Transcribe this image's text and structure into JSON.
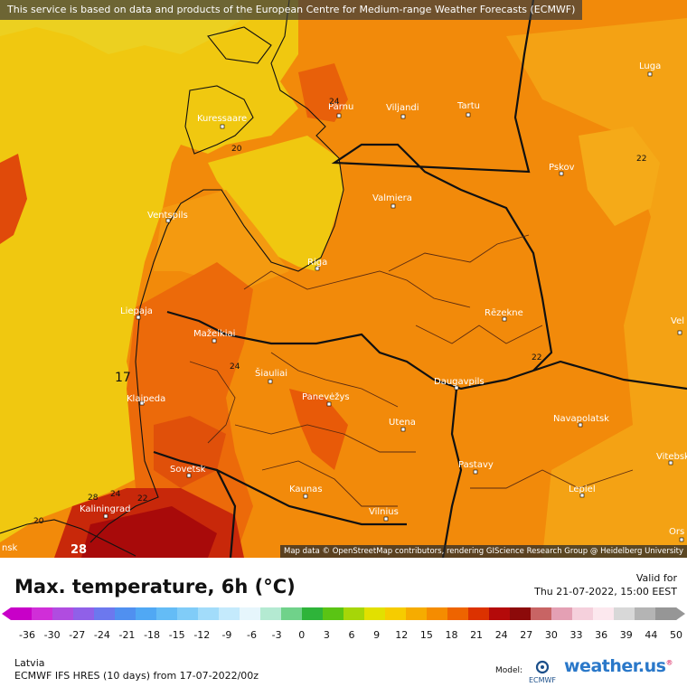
{
  "notice": "This service is based on data and products of the European Centre for Medium-range Weather Forecasts (ECMWF)",
  "attribution": "Map data © OpenStreetMap contributors, rendering GIScience Research Group @ Heidelberg University",
  "title": "Max. temperature, 6h (°C)",
  "valid_label": "Valid for",
  "valid_time": "Thu 21-07-2022, 15:00 EEST",
  "region": "Latvia",
  "model_run": "ECMWF IFS HRES (10 days) from 17-07-2022/00z",
  "model_label": "Model:",
  "brand": "weather.us",
  "brand_tld_mark": "®",
  "ecmwf_logo_text": "ECMWF",
  "cities": [
    {
      "name": "Kuressaare"
    },
    {
      "name": "Pärnu"
    },
    {
      "name": "Viljandi"
    },
    {
      "name": "Tartu"
    },
    {
      "name": "Luga"
    },
    {
      "name": "Pskov"
    },
    {
      "name": "Valmiera"
    },
    {
      "name": "Ventspils"
    },
    {
      "name": "Riga"
    },
    {
      "name": "Liepaja"
    },
    {
      "name": "Rēzekne"
    },
    {
      "name": "Mažeikiai"
    },
    {
      "name": "Šiauliai"
    },
    {
      "name": "Panevėžys"
    },
    {
      "name": "Daugavpils"
    },
    {
      "name": "Klaipeda"
    },
    {
      "name": "Utena"
    },
    {
      "name": "Navapolatsk"
    },
    {
      "name": "Sovetsk"
    },
    {
      "name": "Pastavy"
    },
    {
      "name": "Vitebsk"
    },
    {
      "name": "Kaunas"
    },
    {
      "name": "Lepiel"
    },
    {
      "name": "Kaliningrad"
    },
    {
      "name": "Vilnius"
    },
    {
      "name": "Vel"
    },
    {
      "name": "Ors"
    },
    {
      "name": "nsk"
    }
  ],
  "isolines": [
    "20",
    "24",
    "22",
    "24",
    "22",
    "17",
    "28",
    "24",
    "22",
    "20",
    "28"
  ],
  "colorbar": {
    "ticks": [
      "-36",
      "-30",
      "-27",
      "-24",
      "-21",
      "-18",
      "-15",
      "-12",
      "-9",
      "-6",
      "-3",
      "0",
      "3",
      "6",
      "9",
      "12",
      "15",
      "18",
      "21",
      "24",
      "27",
      "30",
      "33",
      "36",
      "39",
      "44",
      "50"
    ],
    "colors": [
      "#c800c8",
      "#d02ed8",
      "#b04ce0",
      "#9060e8",
      "#6c78ee",
      "#5090f0",
      "#50a8f4",
      "#64bcf6",
      "#80ccf8",
      "#a2dcfa",
      "#c4eafc",
      "#e6f6fc",
      "#b4ead2",
      "#70d28a",
      "#2eb43a",
      "#5ac414",
      "#a6d608",
      "#e2e000",
      "#f6cc00",
      "#f6ac00",
      "#f58c00",
      "#ee6400",
      "#dc3200",
      "#b40a0a",
      "#8c0a0a",
      "#c86464",
      "#e4a0b4",
      "#f5d0dc",
      "#fce8ee",
      "#d8d8d8",
      "#b4b4b4",
      "#969696"
    ]
  }
}
